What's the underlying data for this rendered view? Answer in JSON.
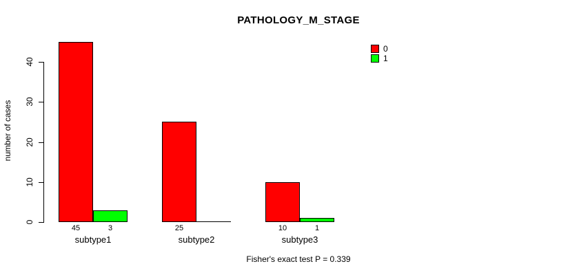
{
  "chart_data": {
    "type": "bar",
    "title": "PATHOLOGY_M_STAGE",
    "ylabel": "number of cases",
    "xlabel": "",
    "footnote": "Fisher's exact test P = 0.339",
    "categories": [
      "subtype1",
      "subtype2",
      "subtype3"
    ],
    "series": [
      {
        "name": "0",
        "color": "#ff0000",
        "values": [
          45,
          25,
          10
        ]
      },
      {
        "name": "1",
        "color": "#00ff00",
        "values": [
          3,
          0,
          1
        ]
      }
    ],
    "value_labels": [
      [
        "45",
        "3"
      ],
      [
        "25",
        ""
      ],
      [
        "10",
        "1"
      ]
    ],
    "yticks": [
      0,
      10,
      20,
      30,
      40
    ],
    "ylim": [
      0,
      45
    ],
    "grid": false,
    "legend_position": "top-right",
    "bar_border_color": "#000000",
    "axis_color": "#000000"
  }
}
